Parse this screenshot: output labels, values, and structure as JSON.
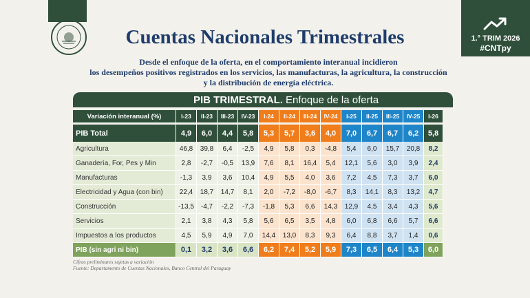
{
  "header": {
    "title": "Cuentas Nacionales Trimestrales",
    "subtitle_lines": [
      "Desde el enfoque de la oferta, en el comportamiento interanual incidieron",
      "los desempeños positivos registrados en los servicios, las manufacturas, la agricultura, la construcción",
      "y la distribución de energía eléctrica."
    ]
  },
  "seal": {
    "text": "BANCO CENTRAL DEL PARAGUAY"
  },
  "badge": {
    "period": "1.° TRIM 2026",
    "hashtag": "#CNTpy",
    "icon": "trend-up-icon"
  },
  "table": {
    "title_bold": "PIB TRIMESTRAL.",
    "title_rest": "Enfoque de la oferta",
    "column_header_label": "Variación interanual (%)",
    "columns": [
      "I-23",
      "II-23",
      "III-23",
      "IV-23",
      "I-24",
      "II-24",
      "III-24",
      "IV-24",
      "I-25",
      "II-25",
      "III-25",
      "IV-25",
      "I-26"
    ],
    "total_row": {
      "label": "PIB Total",
      "values": [
        "4,9",
        "6,0",
        "4,4",
        "5,8",
        "5,3",
        "5,7",
        "3,6",
        "4,0",
        "7,0",
        "6,7",
        "6,7",
        "6,2",
        "5,8"
      ]
    },
    "rows": [
      {
        "label": "Agricultura",
        "values": [
          "46,8",
          "39,8",
          "6,4",
          "-2,5",
          "4,9",
          "5,8",
          "0,3",
          "-4,8",
          "5,4",
          "6,0",
          "15,7",
          "20,8",
          "8,2"
        ]
      },
      {
        "label": "Ganadería, For, Pes y Min",
        "values": [
          "2,8",
          "-2,7",
          "-0,5",
          "13,9",
          "7,6",
          "8,1",
          "16,4",
          "5,4",
          "12,1",
          "5,6",
          "3,0",
          "3,9",
          "2,4"
        ]
      },
      {
        "label": "Manufacturas",
        "values": [
          "-1,3",
          "3,9",
          "3,6",
          "10,4",
          "4,9",
          "5,5",
          "4,0",
          "3,6",
          "7,2",
          "4,5",
          "7,3",
          "3,7",
          "6,0"
        ]
      },
      {
        "label": "Electricidad y Agua (con bin)",
        "values": [
          "22,4",
          "18,7",
          "14,7",
          "8,1",
          "2,0",
          "-7,2",
          "-8,0",
          "-6,7",
          "8,3",
          "14,1",
          "8,3",
          "13,2",
          "4,7"
        ]
      },
      {
        "label": "Construcción",
        "values": [
          "-13,5",
          "-4,7",
          "-2,2",
          "-7,3",
          "-1,8",
          "5,3",
          "6,6",
          "14,3",
          "12,9",
          "4,5",
          "3,4",
          "4,3",
          "5,6"
        ]
      },
      {
        "label": "Servicios",
        "values": [
          "2,1",
          "3,8",
          "4,3",
          "5,8",
          "5,6",
          "6,5",
          "3,5",
          "4,8",
          "6,0",
          "6,8",
          "6,6",
          "5,7",
          "6,6"
        ]
      },
      {
        "label": "Impuestos a los productos",
        "values": [
          "4,5",
          "5,9",
          "4,9",
          "7,0",
          "14,4",
          "13,0",
          "8,3",
          "9,3",
          "6,4",
          "8,8",
          "3,7",
          "1,4",
          "0,6"
        ]
      }
    ],
    "footer_row": {
      "label": "PIB (sin agri ni bin)",
      "values": [
        "0,1",
        "3,2",
        "3,6",
        "6,6",
        "6,2",
        "7,4",
        "5,2",
        "5,9",
        "7,3",
        "6,5",
        "6,4",
        "5,3",
        "6,0"
      ]
    }
  },
  "notes": {
    "line1": "Cifras preliminares sujetas a variación",
    "line2": "Fuente: Departamento de Cuentas Nacionales, Banco Central del Paraguay"
  },
  "colors": {
    "dark_green": "#2f4f3a",
    "orange": "#f07d1b",
    "blue": "#1f85c9",
    "navy": "#1f3d6b",
    "light_green": "#7fa35c"
  }
}
